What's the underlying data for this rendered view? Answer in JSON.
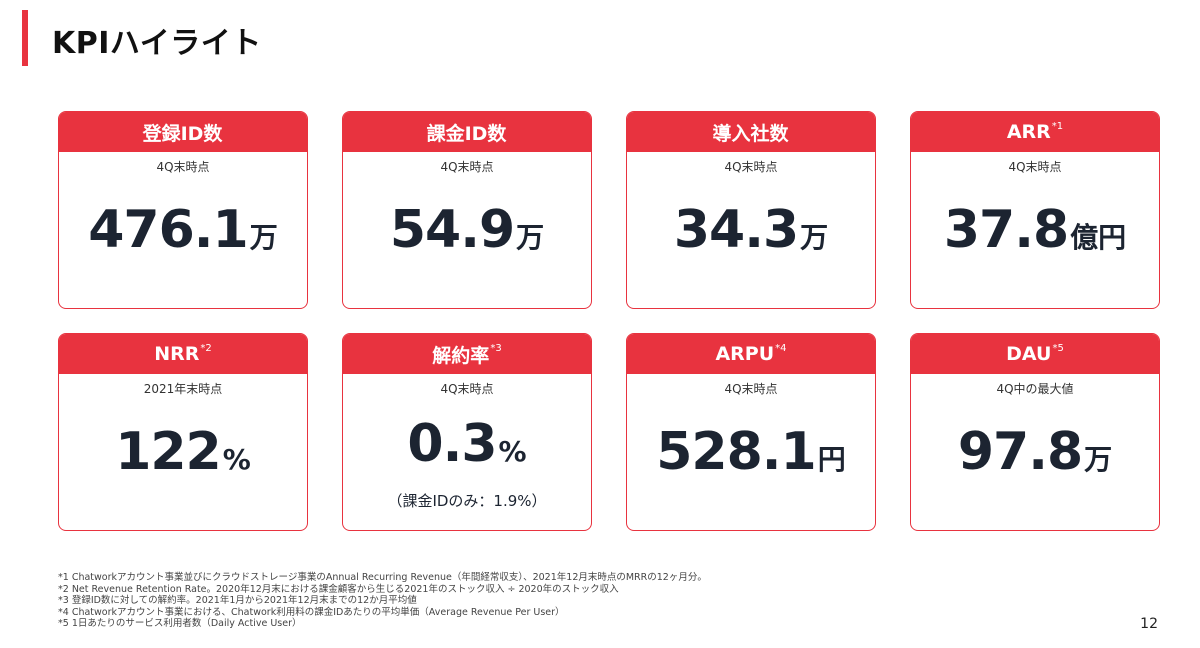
{
  "page": {
    "title": "KPIハイライト",
    "page_number": "12"
  },
  "colors": {
    "accent": "#e8333f",
    "value": "#1c2431"
  },
  "kpis": [
    {
      "label": "登録ID数",
      "sup": "",
      "period": "4Q末時点",
      "value": "476.1",
      "unit": "万",
      "note": ""
    },
    {
      "label": "課金ID数",
      "sup": "",
      "period": "4Q末時点",
      "value": "54.9",
      "unit": "万",
      "note": ""
    },
    {
      "label": "導入社数",
      "sup": "",
      "period": "4Q末時点",
      "value": "34.3",
      "unit": "万",
      "note": ""
    },
    {
      "label": "ARR",
      "sup": "*1",
      "period": "4Q末時点",
      "value": "37.8",
      "unit": "億円",
      "note": ""
    },
    {
      "label": "NRR",
      "sup": "*2",
      "period": "2021年末時点",
      "value": "122",
      "unit": "%",
      "note": ""
    },
    {
      "label": "解約率",
      "sup": "*3",
      "period": "4Q末時点",
      "value": "0.3",
      "unit": "%",
      "note": "（課金IDのみ：1.9%）"
    },
    {
      "label": "ARPU",
      "sup": "*4",
      "period": "4Q末時点",
      "value": "528.1",
      "unit": "円",
      "note": ""
    },
    {
      "label": "DAU",
      "sup": "*5",
      "period": "4Q中の最大値",
      "value": "97.8",
      "unit": "万",
      "note": ""
    }
  ],
  "footnotes": [
    "*1 Chatworkアカウント事業並びにクラウドストレージ事業のAnnual Recurring Revenue（年間経常収支）、2021年12月末時点のMRRの12ヶ月分。",
    "*2 Net Revenue Retention Rate。2020年12月末における課金顧客から生じる2021年のストック収入 ÷ 2020年のストック収入",
    "*3 登録ID数に対しての解約率。2021年1月から2021年12月末までの12か月平均値",
    "*4 Chatworkアカウント事業における、Chatwork利用料の課金IDあたりの平均単価（Average Revenue Per User）",
    "*5 1日あたりのサービス利用者数（Daily Active User）"
  ]
}
